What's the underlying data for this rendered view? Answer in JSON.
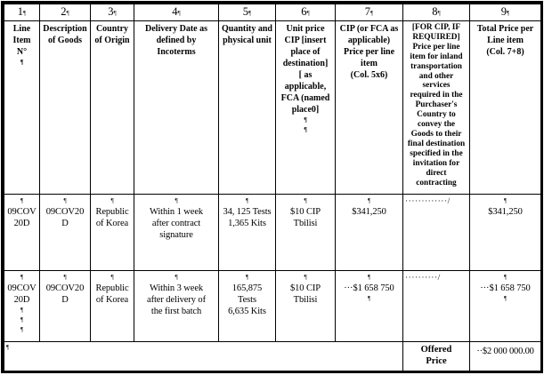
{
  "marks": {
    "pilcrow": "¶"
  },
  "table": {
    "number_row": [
      "1",
      "2",
      "3",
      "4",
      "5",
      "6",
      "7",
      "8",
      "9"
    ],
    "header_cells": [
      {
        "lines": [
          "Line",
          "Item",
          "N°",
          "¶"
        ]
      },
      {
        "lines": [
          "Description",
          "of Goods"
        ]
      },
      {
        "lines": [
          "Country",
          "of Origin"
        ]
      },
      {
        "lines": [
          "Delivery Date as",
          "defined by",
          "Incoterms"
        ]
      },
      {
        "lines": [
          "Quantity and",
          "physical unit"
        ]
      },
      {
        "lines": [
          "Unit price",
          "CIP [insert",
          "place of",
          "destination]",
          "[ as",
          "applicable,",
          "FCA (named",
          "place0]",
          "¶",
          "¶"
        ]
      },
      {
        "lines": [
          "CIP (or FCA as",
          "applicable)",
          "Price per line",
          "item",
          "(Col. 5x6)"
        ]
      },
      {
        "lines": [
          "[FOR CIP, IF",
          "REQUIRED]",
          "Price per line",
          "item for inland",
          "transportation",
          "and other",
          "services",
          "required in the",
          "Purchaser's",
          "Country to",
          "convey the",
          "Goods to their",
          "final destination",
          "specified in the",
          "invitation for",
          "direct",
          "contracting"
        ],
        "small": true
      },
      {
        "lines": [
          "Total Price per",
          "Line item",
          "(Col. 7+8)"
        ]
      }
    ],
    "rows": [
      {
        "cells": [
          {
            "lines": [
              "¶",
              "09COV",
              "20D"
            ]
          },
          {
            "lines": [
              "¶",
              "09COV20",
              "D"
            ]
          },
          {
            "lines": [
              "¶",
              "Republic",
              "of Korea"
            ]
          },
          {
            "lines": [
              "¶",
              "Within 1 week",
              "after contract",
              "signature"
            ]
          },
          {
            "lines": [
              "¶",
              "34, 125 Tests",
              "1,365 Kits"
            ]
          },
          {
            "lines": [
              "¶",
              "$10 CIP",
              "Tbilisi"
            ]
          },
          {
            "lines": [
              "¶",
              "$341,250"
            ]
          },
          {
            "lines": [
              "·············/"
            ],
            "left": true,
            "dots": true
          },
          {
            "lines": [
              "¶",
              "$341,250"
            ]
          }
        ]
      },
      {
        "cells": [
          {
            "lines": [
              "¶",
              "09COV",
              "20D",
              "¶",
              "¶",
              "¶"
            ]
          },
          {
            "lines": [
              "¶",
              "09COV20",
              "D"
            ]
          },
          {
            "lines": [
              "¶",
              "Republic",
              "of Korea"
            ]
          },
          {
            "lines": [
              "¶",
              "Within 3 week",
              "after delivery of",
              "the first batch"
            ]
          },
          {
            "lines": [
              "¶",
              "165,875",
              "Tests",
              "6,635 Kits"
            ]
          },
          {
            "lines": [
              "¶",
              "$10 CIP",
              "Tbilisi"
            ]
          },
          {
            "lines": [
              "¶",
              "···$1 658 750",
              "¶"
            ]
          },
          {
            "lines": [
              "··········/"
            ],
            "left": true,
            "dots": true
          },
          {
            "lines": [
              "¶",
              "···$1 658 750",
              "¶"
            ]
          }
        ]
      }
    ],
    "footer": {
      "left_mark": "¶",
      "label_lines": [
        "Offered",
        "Price"
      ],
      "value": "··$2 000 000.00"
    }
  }
}
